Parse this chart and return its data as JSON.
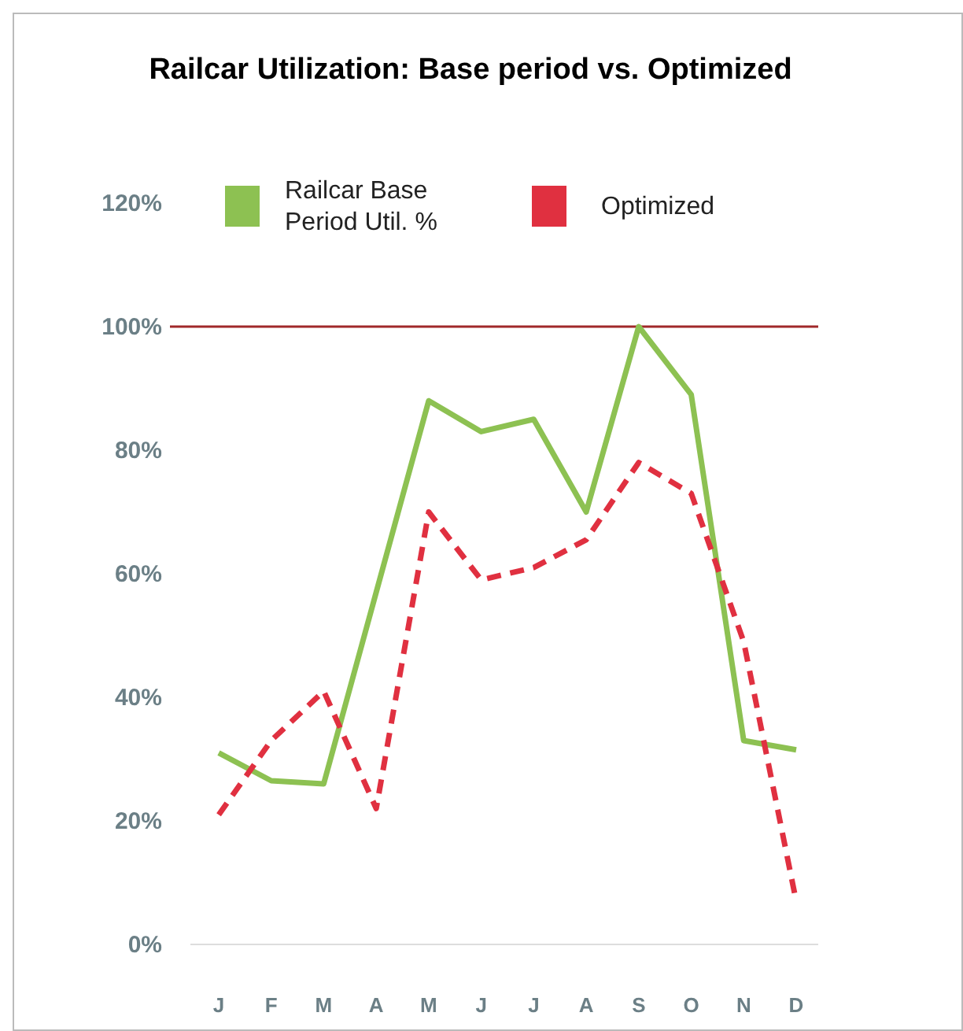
{
  "chart_data": {
    "type": "line",
    "title": "Railcar Utilization:  Base period vs. Optimized",
    "categories": [
      "J",
      "F",
      "M",
      "A",
      "M",
      "J",
      "J",
      "A",
      "S",
      "O",
      "N",
      "D"
    ],
    "series": [
      {
        "name": "Railcar Base Period Util. %",
        "color": "#8dc152",
        "line_style": "solid",
        "values": [
          31,
          26.5,
          26,
          57,
          88,
          83,
          85,
          70,
          100,
          89,
          33,
          31.5
        ]
      },
      {
        "name": "Optimized",
        "color": "#e03040",
        "line_style": "dashed",
        "values": [
          21,
          33,
          41,
          22,
          70,
          59,
          61,
          65.5,
          78,
          73,
          49,
          7
        ]
      }
    ],
    "ylim": [
      0,
      120
    ],
    "yticks": [
      {
        "value": 0,
        "label": "0%"
      },
      {
        "value": 20,
        "label": "20%"
      },
      {
        "value": 40,
        "label": "40%"
      },
      {
        "value": 60,
        "label": "60%"
      },
      {
        "value": 80,
        "label": "80%"
      },
      {
        "value": 100,
        "label": "100%"
      },
      {
        "value": 120,
        "label": "120%"
      }
    ],
    "ref_lines": [
      {
        "axis": "y",
        "value": 100,
        "color": "#a0282a"
      }
    ],
    "legend": "top",
    "grid": false,
    "marker": "none"
  }
}
